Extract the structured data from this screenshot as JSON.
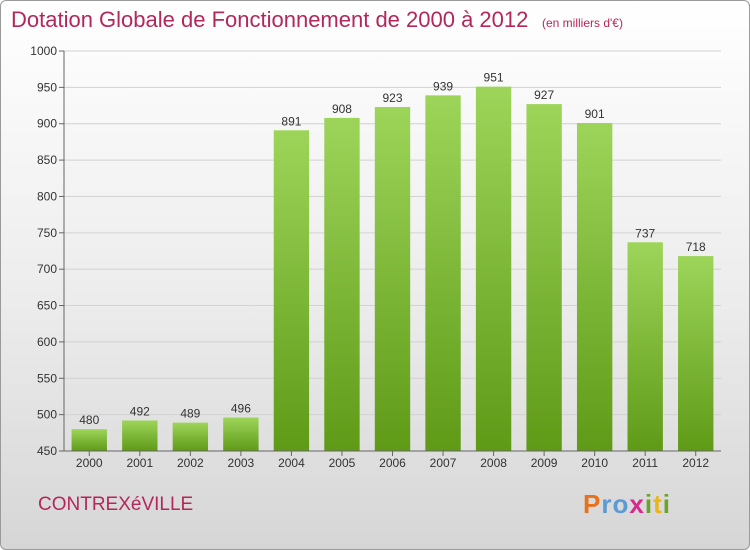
{
  "header": {
    "title": "Dotation Globale de Fonctionnement de 2000 à 2012",
    "subtitle": "(en milliers d'€)"
  },
  "footer": {
    "commune": "CONTREXéVILLE",
    "logo": {
      "letters": [
        "P",
        "r",
        "o",
        "x",
        "i",
        "t",
        "i"
      ],
      "colors": [
        "#e8711b",
        "#5b9bd5",
        "#5b9bd5",
        "#d9278c",
        "#6aa22a",
        "#e8b61b",
        "#6aa22a"
      ]
    }
  },
  "chart_data": {
    "type": "bar",
    "categories": [
      "2000",
      "2001",
      "2002",
      "2003",
      "2004",
      "2005",
      "2006",
      "2007",
      "2008",
      "2009",
      "2010",
      "2011",
      "2012"
    ],
    "values": [
      480,
      492,
      489,
      496,
      891,
      908,
      923,
      939,
      951,
      927,
      901,
      737,
      718
    ],
    "value_labels": [
      "480",
      "492",
      "489",
      "496",
      "891",
      "908",
      "923",
      "939",
      "951",
      "927",
      "901",
      "737",
      "718"
    ],
    "yticks": [
      450,
      500,
      550,
      600,
      650,
      700,
      750,
      800,
      850,
      900,
      950,
      1000
    ],
    "ytick_labels": [
      "450",
      "500",
      "550",
      "600",
      "650",
      "700",
      "750",
      "800",
      "850",
      "900",
      "950",
      "1000"
    ],
    "ylim": [
      450,
      1000
    ],
    "grid": true,
    "colors": {
      "bar_top": "#9dd55a",
      "bar_bottom": "#5f9a17",
      "grid": "#d2d2d2",
      "axis": "#666666"
    }
  }
}
